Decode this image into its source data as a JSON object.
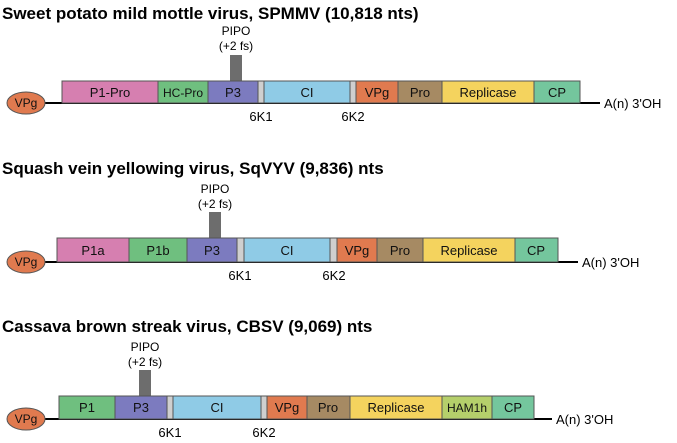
{
  "genomes": [
    {
      "title": "Sweet potato mild mottle virus, SPMMV (10,818 nts)",
      "vpg_cap": "VPg",
      "tail": "A(n) 3'OH",
      "pipo_line1": "PIPO",
      "pipo_line2": "(+2 fs)",
      "segments": [
        {
          "label": "P1-Pro",
          "color": "#d67fb0"
        },
        {
          "label": "HC-Pro",
          "color": "#6fbf7f"
        },
        {
          "label": "P3",
          "color": "#7c7bbf"
        },
        {
          "label": "CI",
          "color": "#8fcbe6"
        },
        {
          "label": "VPg",
          "color": "#e07a4f"
        },
        {
          "label": "Pro",
          "color": "#a68a63"
        },
        {
          "label": "Replicase",
          "color": "#f4d35e"
        },
        {
          "label": "CP",
          "color": "#74c69d"
        }
      ],
      "junctions": [
        "6K1",
        "6K2"
      ]
    },
    {
      "title": "Squash vein yellowing virus, SqVYV (9,836) nts",
      "vpg_cap": "VPg",
      "tail": "A(n) 3'OH",
      "pipo_line1": "PIPO",
      "pipo_line2": "(+2 fs)",
      "segments": [
        {
          "label": "P1a",
          "color": "#d67fb0"
        },
        {
          "label": "P1b",
          "color": "#6fbf7f"
        },
        {
          "label": "P3",
          "color": "#7c7bbf"
        },
        {
          "label": "CI",
          "color": "#8fcbe6"
        },
        {
          "label": "VPg",
          "color": "#e07a4f"
        },
        {
          "label": "Pro",
          "color": "#a68a63"
        },
        {
          "label": "Replicase",
          "color": "#f4d35e"
        },
        {
          "label": "CP",
          "color": "#74c69d"
        }
      ],
      "junctions": [
        "6K1",
        "6K2"
      ]
    },
    {
      "title": "Cassava brown streak virus, CBSV (9,069) nts",
      "vpg_cap": "VPg",
      "tail": "A(n) 3'OH",
      "pipo_line1": "PIPO",
      "pipo_line2": "(+2 fs)",
      "segments": [
        {
          "label": "P1",
          "color": "#6fbf7f"
        },
        {
          "label": "P3",
          "color": "#7c7bbf"
        },
        {
          "label": "CI",
          "color": "#8fcbe6"
        },
        {
          "label": "VPg",
          "color": "#e07a4f"
        },
        {
          "label": "Pro",
          "color": "#a68a63"
        },
        {
          "label": "Replicase",
          "color": "#f4d35e"
        },
        {
          "label": "HAM1h",
          "color": "#b5cf6b"
        },
        {
          "label": "CP",
          "color": "#74c69d"
        }
      ],
      "junctions": [
        "6K1",
        "6K2"
      ]
    }
  ],
  "colors": {
    "vpg_cap": "#e07a4f",
    "pipo": "#6d6d6d",
    "junction": "#cfcfcf",
    "line": "#000000"
  }
}
